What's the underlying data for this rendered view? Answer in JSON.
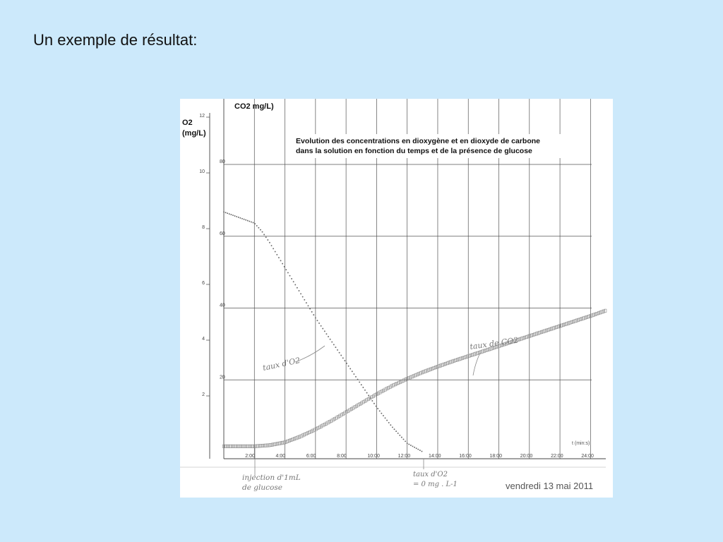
{
  "slide": {
    "title": "Un exemple de résultat:"
  },
  "chart_data": {
    "type": "scatter",
    "title_lines": [
      "Evolution des concentrations en dioxygène et en dioxyde de carbone",
      "dans la solution en fonction du temps et de la présence de glucose"
    ],
    "y_left_label": [
      "O2",
      "(mg/L)"
    ],
    "y_right_label": "CO2 mg/L)",
    "xlabel": "t (min:s)",
    "x_ticks": [
      "2:00",
      "4:00",
      "6:00",
      "8:00",
      "10:00",
      "12:00",
      "14:00",
      "16:00",
      "18:00",
      "20:00",
      "22:00",
      "24:00"
    ],
    "x_tick_values": [
      2,
      4,
      6,
      8,
      10,
      12,
      14,
      16,
      18,
      20,
      22,
      24
    ],
    "xlim": [
      0,
      25
    ],
    "o2_ticks": [
      "2",
      "4",
      "6",
      "8",
      "10",
      "12"
    ],
    "o2_tick_values": [
      2,
      4,
      6,
      8,
      10,
      12
    ],
    "o2_lim": [
      0,
      12
    ],
    "co2_ticks": [
      "20",
      "40",
      "60",
      "80"
    ],
    "co2_tick_values": [
      20,
      40,
      60,
      80
    ],
    "co2_lim": [
      0,
      100
    ],
    "grid": true,
    "series": [
      {
        "name": "taux d'O2",
        "axis": "o2",
        "color": "#6a6a6a",
        "x": [
          0,
          1,
          2,
          2.5,
          3,
          4,
          5,
          6,
          7,
          8,
          9,
          10,
          11,
          12,
          13
        ],
        "y": [
          8.6,
          8.4,
          8.2,
          7.9,
          7.5,
          6.6,
          5.7,
          4.8,
          4.0,
          3.2,
          2.4,
          1.6,
          0.9,
          0.3,
          0.0
        ]
      },
      {
        "name": "taux de CO2",
        "axis": "co2",
        "color": "#888888",
        "x": [
          0,
          2,
          3,
          4,
          5,
          6,
          7,
          8,
          9,
          10,
          11,
          12,
          13,
          14,
          15,
          16,
          17,
          18,
          19,
          20,
          21,
          22,
          23,
          24,
          25
        ],
        "y": [
          1.5,
          1.5,
          1.8,
          2.6,
          4.2,
          6.2,
          8.5,
          11,
          13.5,
          16,
          18.3,
          20.3,
          22.1,
          23.7,
          25.2,
          26.6,
          28,
          29.4,
          30.8,
          32.2,
          33.6,
          35,
          36.4,
          37.8,
          39.3
        ]
      }
    ],
    "annotations": {
      "o2": "taux d'O2",
      "co2": "taux de CO2",
      "injection_line1": "injection d'1mL",
      "injection_line2": "de glucose",
      "zero_line1": "taux d'O2",
      "zero_line2": "= 0 mg . L-1",
      "date": "vendredi 13 mai 2011"
    }
  }
}
